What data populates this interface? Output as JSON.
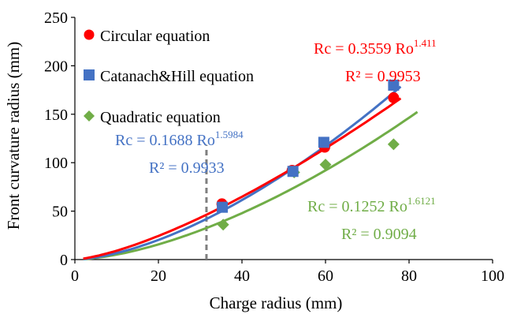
{
  "chart_data": {
    "type": "scatter",
    "xlabel": "Charge radius (mm)",
    "ylabel": "Front curvature radius (mm)",
    "xlim": [
      0,
      100
    ],
    "ylim": [
      0,
      250
    ],
    "x_ticks": [
      0,
      20,
      40,
      60,
      80,
      100
    ],
    "y_ticks": [
      0,
      50,
      100,
      150,
      200,
      250
    ],
    "x_tick_labels": [
      "0",
      "20",
      "40",
      "60",
      "80",
      "100"
    ],
    "y_tick_labels": [
      "0",
      "50",
      "100",
      "150",
      "200",
      "250"
    ],
    "grid": false,
    "legend_position": "top-left",
    "series": [
      {
        "name": "Circular equation",
        "color": "#ff0000",
        "marker": "circle",
        "points": [
          [
            35.2,
            57.5
          ],
          [
            52.0,
            92.0
          ],
          [
            59.8,
            116.0
          ],
          [
            76.3,
            167.0
          ]
        ],
        "fit": {
          "coef": 0.3559,
          "exp": 1.411,
          "x_range": [
            2,
            78
          ],
          "equation_main": "Rc = 0.3559 Ro",
          "equation_sup": "1.411",
          "r2_text": "R² = 0.9953"
        }
      },
      {
        "name": "Catanach&Hill equation",
        "color": "#4472c4",
        "marker": "square",
        "points": [
          [
            35.3,
            54.0
          ],
          [
            52.2,
            91.0
          ],
          [
            59.6,
            121.0
          ],
          [
            76.3,
            180.0
          ]
        ],
        "fit": {
          "coef": 0.1688,
          "exp": 1.5984,
          "x_range": [
            2,
            78
          ],
          "equation_main": "Rc = 0.1688 Ro",
          "equation_sup": "1.5984",
          "r2_text": "R² = 0.9933"
        }
      },
      {
        "name": "Quadratic equation",
        "color": "#70ad47",
        "marker": "diamond",
        "points": [
          [
            35.5,
            36.0
          ],
          [
            52.5,
            90.0
          ],
          [
            60.0,
            98.0
          ],
          [
            76.3,
            119.0
          ]
        ],
        "fit": {
          "coef": 0.1252,
          "exp": 1.6121,
          "x_range": [
            2,
            82
          ],
          "equation_main": "Rc = 0.1252 Ro",
          "equation_sup": "1.6121",
          "r2_text": "R² = 0.9094"
        }
      }
    ],
    "annotations": [
      {
        "type": "vertical-dashed-line",
        "x": 31.5,
        "y_from": 0,
        "y_to": 118,
        "color": "#7f7f7f"
      }
    ]
  }
}
